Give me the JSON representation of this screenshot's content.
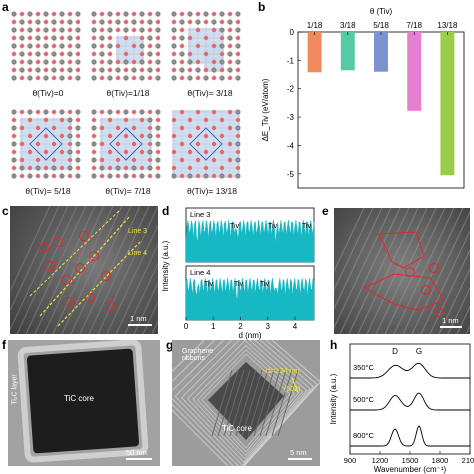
{
  "panel_labels": {
    "a": "a",
    "b": "b",
    "c": "c",
    "d": "d",
    "e": "e",
    "f": "f",
    "g": "g",
    "h": "h"
  },
  "panel_a": {
    "captions": [
      "θ(Tiv)=0",
      "θ(Tiv)=1/18",
      "θ(Tiv)= 3/18",
      "θ(Tiv)= 5/18",
      "θ(Tiv)= 7/18",
      "θ(Tiv)= 13/18"
    ],
    "colors": {
      "ti": "#8a8a8a",
      "c": "#e06a72",
      "vacancy": "#c8d8ef"
    }
  },
  "chart_data": [
    {
      "type": "bar",
      "panel": "b",
      "title": "θ (Tiv)",
      "categories": [
        "1/18",
        "3/18",
        "5/18",
        "7/18",
        "13/18"
      ],
      "values": [
        -1.42,
        -1.35,
        -1.4,
        -2.78,
        -5.05
      ],
      "colors": [
        "#f08a5d",
        "#56c9a5",
        "#7b93cf",
        "#e87ed0",
        "#9ccd4a"
      ],
      "ylabel": "ΔE_Tiv (eV/atom)",
      "ylim": [
        -5.5,
        0
      ],
      "yticks": [
        "0",
        "-1",
        "-2",
        "-3",
        "-4",
        "-5"
      ]
    },
    {
      "type": "line",
      "panel": "d",
      "xlabel": "d (nm)",
      "ylabel": "Intensity (a.u.)",
      "xlim": [
        0,
        4.7
      ],
      "xticks": [
        "0",
        "1",
        "2",
        "3",
        "4"
      ],
      "series": [
        {
          "name": "Line 3",
          "peak_labels": [
            "Tiv",
            "Tiv",
            "Tiv"
          ]
        },
        {
          "name": "Line 4",
          "peak_labels": [
            "Tiv",
            "Tiv",
            "Tiv"
          ]
        }
      ],
      "color": "#16b8c4"
    },
    {
      "type": "line",
      "panel": "h",
      "xlabel": "Wavenumber (cm⁻¹)",
      "ylabel": "Intensity (a.u.)",
      "xlim": [
        900,
        2100
      ],
      "xticks": [
        "900",
        "1200",
        "1500",
        "1800",
        "2100"
      ],
      "band_labels": [
        "D",
        "G"
      ],
      "series": [
        {
          "name": "350°C"
        },
        {
          "name": "500°C"
        },
        {
          "name": "800°C"
        }
      ]
    }
  ],
  "panel_c": {
    "annotations": [
      "Line 3",
      "Line 4"
    ],
    "scale": "1 nm"
  },
  "panel_e": {
    "scale": "1 nm"
  },
  "panel_f": {
    "core": "TiC core",
    "layer": "Ti₂C layer",
    "scale": "50 nm"
  },
  "panel_g": {
    "ribbons": "Graphene ribbons",
    "core": "TiC core",
    "spacing": "d=0.34 nm",
    "plane": "(002)",
    "scale": "5 nm"
  }
}
